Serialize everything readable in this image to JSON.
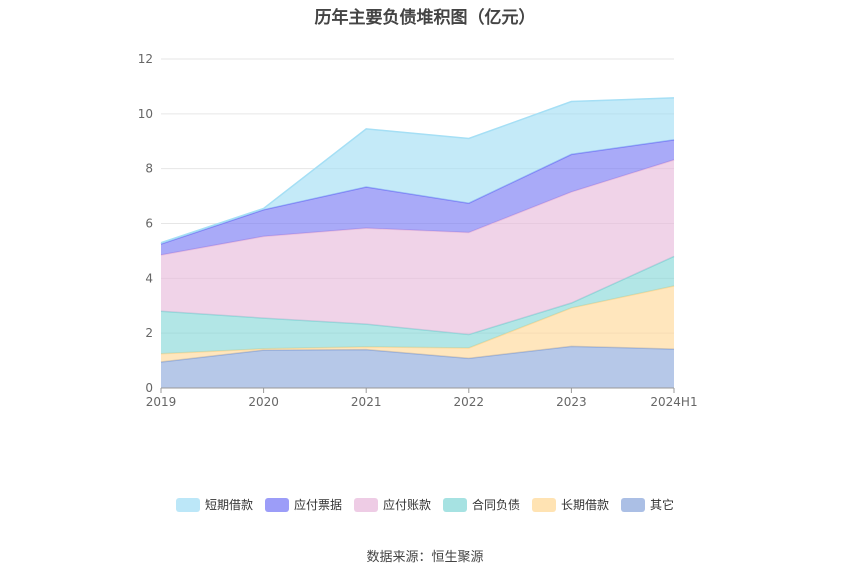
{
  "chart_data": {
    "type": "area",
    "stacked": true,
    "title": "历年主要负债堆积图（亿元）",
    "xlabel": "",
    "ylabel": "",
    "ylim": [
      0,
      12
    ],
    "yticks": [
      "0",
      "2",
      "4",
      "6",
      "8",
      "10",
      "12"
    ],
    "categories": [
      "2019",
      "2020",
      "2021",
      "2022",
      "2023",
      "2024H1"
    ],
    "legend_position": "bottom",
    "grid": true,
    "series": [
      {
        "name": "其它",
        "color": "#8faadc",
        "values": [
          0.95,
          1.38,
          1.4,
          1.08,
          1.52,
          1.42
        ]
      },
      {
        "name": "长期借款",
        "color": "#ffd999",
        "values": [
          0.3,
          0.05,
          0.1,
          0.38,
          1.4,
          2.3
        ]
      },
      {
        "name": "合同负债",
        "color": "#88d8d8",
        "values": [
          1.55,
          1.12,
          0.83,
          0.49,
          0.18,
          1.08
        ]
      },
      {
        "name": "应付账款",
        "color": "#e8bbdc",
        "values": [
          2.05,
          2.98,
          3.5,
          3.72,
          4.05,
          3.52
        ]
      },
      {
        "name": "应付票据",
        "color": "#7b7cf5",
        "values": [
          0.4,
          0.97,
          1.5,
          1.07,
          1.37,
          0.73
        ]
      },
      {
        "name": "短期借款",
        "color": "#a5dff5",
        "values": [
          0.05,
          0.05,
          2.12,
          2.36,
          1.93,
          1.53
        ]
      }
    ]
  },
  "legend_order": [
    "短期借款",
    "应付票据",
    "应付账款",
    "合同负债",
    "长期借款",
    "其它"
  ],
  "source_text": "数据来源：恒生聚源"
}
